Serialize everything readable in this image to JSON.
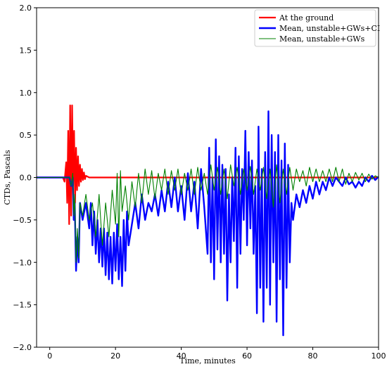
{
  "chart_data": {
    "type": "line",
    "xlabel": "Time, minutes",
    "ylabel": "CTDs, Pascals",
    "xlim": [
      -4,
      100
    ],
    "ylim": [
      -2.0,
      2.0
    ],
    "xticks": [
      0,
      20,
      40,
      60,
      80,
      100
    ],
    "yticks": [
      -2.0,
      -1.5,
      -1.0,
      -0.5,
      0.0,
      0.5,
      1.0,
      1.5,
      2.0
    ],
    "xtick_labels": [
      "0",
      "20",
      "40",
      "60",
      "80",
      "100"
    ],
    "ytick_labels": [
      "−2.0",
      "−1.5",
      "−1.0",
      "−0.5",
      "0.0",
      "0.5",
      "1.0",
      "1.5",
      "2.0"
    ],
    "grid": false,
    "legend_position": "top-right",
    "series": [
      {
        "name": "At the ground",
        "color": "#ff0000",
        "width": 2.2,
        "x": [
          -4,
          4.0,
          4.5,
          5.0,
          5.3,
          5.6,
          5.9,
          6.2,
          6.5,
          6.8,
          7.1,
          7.4,
          7.7,
          8.0,
          8.3,
          8.6,
          8.9,
          9.2,
          9.5,
          9.8,
          10.1,
          10.4,
          10.7,
          11.0,
          12.0,
          100
        ],
        "y": [
          0,
          0,
          -0.05,
          0.18,
          -0.3,
          0.55,
          -0.55,
          0.85,
          -0.45,
          0.85,
          -0.1,
          0.55,
          -0.3,
          0.35,
          -0.15,
          0.25,
          -0.1,
          0.15,
          -0.05,
          0.1,
          -0.03,
          0.06,
          -0.02,
          0.02,
          0,
          0
        ]
      },
      {
        "name": "Mean, unstable+GWs+CI",
        "color": "#0000ff",
        "width": 2.4,
        "x": [
          -4,
          6.0,
          6.5,
          7.0,
          7.3,
          7.6,
          8.0,
          8.4,
          8.8,
          9.2,
          10.0,
          11.0,
          12.0,
          12.5,
          13.0,
          13.5,
          14.0,
          14.5,
          15.0,
          15.5,
          16.0,
          16.5,
          17.0,
          17.5,
          18.0,
          18.5,
          19.0,
          19.5,
          20.0,
          20.5,
          21.0,
          21.5,
          22.0,
          22.5,
          23.0,
          23.5,
          24.0,
          25.0,
          26.0,
          27.0,
          28.0,
          29.0,
          30.0,
          31.0,
          32.0,
          33.0,
          34.0,
          35.0,
          36.0,
          37.0,
          38.0,
          39.0,
          40.0,
          41.0,
          42.0,
          43.0,
          44.0,
          45.0,
          46.0,
          47.0,
          48.0,
          48.5,
          49.0,
          49.5,
          50.0,
          50.5,
          51.0,
          51.5,
          52.0,
          52.5,
          53.0,
          53.5,
          54.0,
          54.5,
          55.0,
          55.5,
          56.0,
          56.5,
          57.0,
          57.5,
          58.0,
          58.5,
          59.0,
          59.5,
          60.0,
          60.5,
          61.0,
          61.5,
          62.0,
          62.5,
          63.0,
          63.5,
          64.0,
          64.5,
          65.0,
          65.5,
          66.0,
          66.5,
          67.0,
          67.5,
          68.0,
          68.5,
          69.0,
          69.5,
          70.0,
          70.5,
          71.0,
          71.5,
          72.0,
          72.5,
          73.0,
          73.5,
          74.0,
          75.0,
          76.0,
          77.0,
          78.0,
          79.0,
          80.0,
          81.0,
          82.0,
          83.0,
          84.0,
          85.0,
          86.0,
          87.0,
          88.0,
          89.0,
          90.0,
          91.0,
          92.0,
          93.0,
          94.0,
          95.0,
          96.0,
          97.0,
          98.0,
          99.0,
          100.0
        ],
        "y": [
          0,
          0,
          -0.1,
          0.0,
          -0.5,
          -0.3,
          -1.1,
          -0.7,
          -1.0,
          -0.3,
          -0.5,
          -0.3,
          -0.6,
          -0.3,
          -0.8,
          -0.4,
          -0.9,
          -0.5,
          -1.0,
          -0.6,
          -1.05,
          -0.6,
          -1.15,
          -0.65,
          -1.2,
          -0.7,
          -1.25,
          -0.65,
          -1.1,
          -0.55,
          -1.2,
          -0.7,
          -1.28,
          -0.5,
          -1.1,
          -0.4,
          -0.8,
          -0.55,
          -0.3,
          -0.6,
          -0.2,
          -0.5,
          -0.3,
          -0.4,
          -0.2,
          -0.45,
          -0.15,
          -0.4,
          -0.05,
          -0.35,
          0.0,
          -0.4,
          -0.1,
          -0.5,
          0.05,
          -0.4,
          -0.05,
          -0.6,
          0.1,
          -0.35,
          -0.9,
          0.35,
          -1.0,
          0.0,
          -1.2,
          0.45,
          -0.85,
          0.25,
          -1.0,
          0.15,
          -0.9,
          0.1,
          -1.45,
          -0.2,
          -1.0,
          0.0,
          -0.75,
          0.35,
          -1.3,
          0.25,
          -0.9,
          0.1,
          -0.5,
          0.55,
          -0.8,
          0.3,
          -0.6,
          0.2,
          -0.9,
          -0.1,
          -1.6,
          0.6,
          -1.3,
          0.1,
          -1.7,
          0.3,
          -1.3,
          0.78,
          -1.5,
          0.5,
          -1.0,
          0.3,
          -1.7,
          0.5,
          -1.2,
          0.2,
          -1.86,
          0.4,
          -1.3,
          0.15,
          -1.0,
          -0.3,
          -0.5,
          -0.2,
          -0.35,
          -0.15,
          -0.3,
          -0.1,
          -0.25,
          -0.05,
          -0.2,
          -0.05,
          -0.15,
          -0.0,
          -0.1,
          0.0,
          -0.05,
          -0.1,
          0.0,
          -0.08,
          -0.05,
          -0.12,
          -0.05,
          -0.1,
          0.0,
          -0.05,
          0.02,
          -0.03,
          0.01
        ]
      },
      {
        "name": "Mean, unstable+GWs",
        "color": "#008000",
        "width": 1.1,
        "x": [
          -4,
          6.0,
          6.5,
          7.0,
          7.3,
          7.6,
          8.0,
          8.4,
          8.8,
          9.2,
          10.0,
          11.0,
          12.0,
          13.0,
          14.0,
          15.0,
          16.0,
          17.0,
          18.0,
          19.0,
          20.0,
          20.5,
          21.0,
          21.5,
          22.0,
          23.0,
          24.0,
          25.0,
          26.0,
          27.0,
          28.0,
          29.0,
          30.0,
          31.0,
          32.0,
          33.0,
          34.0,
          35.0,
          36.0,
          37.0,
          38.0,
          39.0,
          40.0,
          41.0,
          42.0,
          43.0,
          44.0,
          45.0,
          46.0,
          47.0,
          48.0,
          49.0,
          50.0,
          51.0,
          52.0,
          53.0,
          54.0,
          55.0,
          56.0,
          57.0,
          58.0,
          59.0,
          60.0,
          61.0,
          62.0,
          63.0,
          64.0,
          65.0,
          66.0,
          67.0,
          68.0,
          69.0,
          70.0,
          71.0,
          72.0,
          73.0,
          74.0,
          75.0,
          76.0,
          77.0,
          78.0,
          79.0,
          80.0,
          81.0,
          82.0,
          83.0,
          84.0,
          85.0,
          86.0,
          87.0,
          88.0,
          89.0,
          90.0,
          91.0,
          92.0,
          93.0,
          94.0,
          95.0,
          96.0,
          97.0,
          98.0,
          99.0,
          100.0
        ],
        "y": [
          0,
          0,
          -0.1,
          0.05,
          -0.45,
          -0.2,
          -1.0,
          -0.6,
          -0.95,
          -0.3,
          -0.45,
          -0.2,
          -0.5,
          -0.3,
          -0.7,
          -0.2,
          -0.8,
          -0.3,
          -0.7,
          -0.15,
          -0.55,
          0.05,
          -0.7,
          0.08,
          -0.4,
          -0.1,
          -0.5,
          -0.05,
          -0.35,
          0.05,
          -0.3,
          0.1,
          -0.2,
          0.08,
          -0.25,
          0.05,
          -0.15,
          0.1,
          -0.2,
          0.08,
          -0.15,
          0.1,
          -0.2,
          0.05,
          -0.15,
          0.1,
          -0.2,
          0.12,
          -0.15,
          0.05,
          -0.2,
          0.15,
          -0.15,
          0.12,
          -0.2,
          0.1,
          -0.25,
          0.15,
          -0.1,
          0.12,
          -0.2,
          0.1,
          -0.15,
          0.13,
          -0.2,
          0.1,
          -0.15,
          0.12,
          -0.25,
          0.1,
          -0.35,
          0.15,
          -0.3,
          0.1,
          -0.2,
          0.12,
          -0.15,
          0.1,
          -0.05,
          0.08,
          -0.1,
          0.12,
          -0.05,
          0.1,
          -0.05,
          0.08,
          -0.05,
          0.1,
          -0.05,
          0.12,
          -0.05,
          0.1,
          -0.08,
          0.05,
          -0.05,
          0.06,
          -0.03,
          0.05,
          -0.05,
          0.04,
          -0.02,
          0.02,
          0.0
        ]
      }
    ]
  }
}
